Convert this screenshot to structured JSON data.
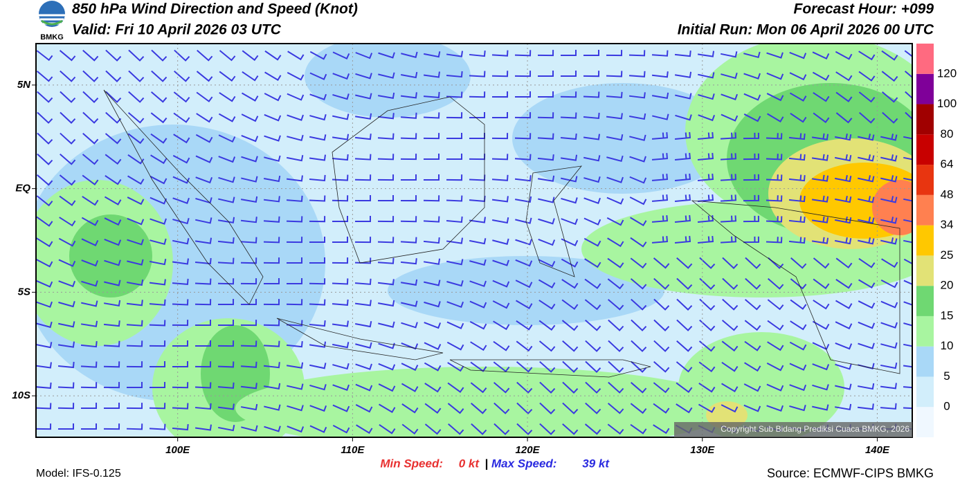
{
  "header": {
    "logo_text": "BMKG",
    "title": "850 hPa Wind Direction and Speed (Knot)",
    "valid": "Valid: Fri 10 April 2026 03 UTC",
    "forecast_hour": "Forecast Hour: +099",
    "initial_run": "Initial Run: Mon 06 April 2026 00 UTC"
  },
  "map": {
    "lonlim": [
      91.9,
      142
    ],
    "latlim": [
      -12,
      7
    ],
    "lat_ticks": [
      {
        "value": 5,
        "label": "5N"
      },
      {
        "value": 0,
        "label": "EQ"
      },
      {
        "value": -5,
        "label": "5S"
      },
      {
        "value": -10,
        "label": "10S"
      }
    ],
    "lon_ticks": [
      {
        "value": 100,
        "label": "100E"
      },
      {
        "value": 110,
        "label": "110E"
      },
      {
        "value": 120,
        "label": "120E"
      },
      {
        "value": 130,
        "label": "130E"
      },
      {
        "value": 140,
        "label": "140E"
      }
    ],
    "copyright": "Copyright Sub Bidang Prediksi Cuaca BMKG, 2026"
  },
  "colorbar": {
    "ticks": [
      0,
      5,
      10,
      15,
      20,
      25,
      34,
      48,
      64,
      80,
      100,
      120
    ],
    "colors": [
      "#f0f8ff",
      "#d2eefb",
      "#a9d8f7",
      "#a8f5a0",
      "#6fd872",
      "#e2e276",
      "#ffc800",
      "#ff8050",
      "#e83510",
      "#c80000",
      "#a00000",
      "#7f0099",
      "#ff6a80"
    ]
  },
  "footer": {
    "model": "Model: IFS-0.125",
    "min_label": "Min Speed:",
    "min_value": "0 kt",
    "separator": "|",
    "max_label": "Max Speed:",
    "max_value": "39 kt",
    "source": "Source: ECMWF-CIPS BMKG"
  }
}
